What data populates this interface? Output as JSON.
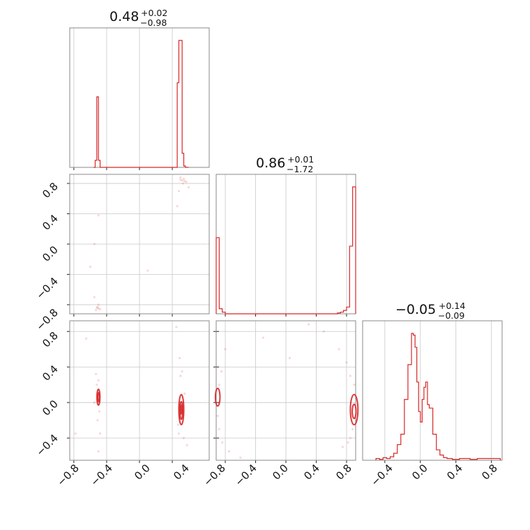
{
  "colors": {
    "series": "#d62728",
    "grid": "#c8c8c8",
    "frame": "#888888"
  },
  "chart_data": {
    "type": "corner",
    "params": [
      {
        "title_value": "0.48",
        "title_plus": "+0.02",
        "title_minus": "−0.98",
        "range": [
          -0.85,
          0.85
        ]
      },
      {
        "title_value": "0.86",
        "title_plus": "+0.01",
        "title_minus": "−1.72",
        "range": [
          -0.92,
          0.92
        ]
      },
      {
        "title_value": "−0.05",
        "title_plus": "+0.14",
        "title_minus": "−0.09",
        "range": [
          -0.65,
          0.92
        ]
      }
    ],
    "xticks": {
      "p0": [
        "−0.8",
        "−0.4",
        "0.0",
        "0.4"
      ],
      "p1": [
        "−0.8",
        "−0.4",
        "0.0",
        "0.4",
        "0.8"
      ],
      "p2": [
        "−0.4",
        "0.0",
        "0.4",
        "0.8"
      ]
    },
    "yticks": {
      "p1": [
        "0.8",
        "0.4",
        "0.0",
        "−0.4",
        "−0.8"
      ],
      "p2": [
        "0.8",
        "0.4",
        "0.0",
        "−0.4"
      ]
    },
    "hist": {
      "p0": {
        "edges": [
          -0.56,
          -0.54,
          -0.52,
          -0.5,
          -0.48,
          -0.46,
          0.46,
          0.48,
          0.5,
          0.52,
          0.54,
          0.56,
          0.6
        ],
        "counts": [
          0,
          0.05,
          0.5,
          0.05,
          0,
          0,
          0.6,
          0.9,
          0.9,
          0.1,
          0.01,
          0
        ]
      },
      "p1": {
        "edges": [
          -0.92,
          -0.88,
          -0.84,
          -0.8,
          0.68,
          0.72,
          0.76,
          0.8,
          0.84,
          0.88,
          0.92
        ],
        "counts": [
          0.45,
          0.03,
          0.01,
          0,
          0.005,
          0.01,
          0.02,
          0.04,
          0.4,
          0.75
        ]
      },
      "p2": {
        "edges": [
          -0.5,
          -0.46,
          -0.42,
          -0.38,
          -0.34,
          -0.3,
          -0.26,
          -0.22,
          -0.18,
          -0.14,
          -0.1,
          -0.08,
          -0.06,
          -0.04,
          -0.02,
          0.0,
          0.02,
          0.04,
          0.06,
          0.08,
          0.1,
          0.14,
          0.18,
          0.22,
          0.26,
          0.3,
          0.36,
          0.44,
          0.56,
          0.64,
          0.84,
          0.9
        ],
        "counts": [
          0.01,
          0.005,
          0.015,
          0.01,
          0.02,
          0.04,
          0.09,
          0.15,
          0.35,
          0.55,
          0.73,
          0.72,
          0.65,
          0.45,
          0.28,
          0.22,
          0.35,
          0.42,
          0.45,
          0.32,
          0.3,
          0.15,
          0.06,
          0.03,
          0.015,
          0.01,
          0.005,
          0.01,
          0.005,
          0.01,
          0.01
        ]
      }
    },
    "contours": {
      "p1_vs_p0": [],
      "p2_vs_p0": [
        {
          "cx": -0.5,
          "cy": 0.06,
          "rx": 0.018,
          "ry": 0.09
        },
        {
          "cx": -0.5,
          "cy": 0.06,
          "rx": 0.01,
          "ry": 0.05
        },
        {
          "cx": 0.51,
          "cy": -0.08,
          "rx": 0.03,
          "ry": 0.17
        },
        {
          "cx": 0.51,
          "cy": -0.09,
          "rx": 0.017,
          "ry": 0.1
        },
        {
          "cx": 0.51,
          "cy": -0.08,
          "rx": 0.008,
          "ry": 0.05
        }
      ],
      "p2_vs_p1": [
        {
          "cx": -0.9,
          "cy": 0.06,
          "rx": 0.03,
          "ry": 0.1
        },
        {
          "cx": 0.9,
          "cy": -0.08,
          "rx": 0.05,
          "ry": 0.17
        },
        {
          "cx": 0.9,
          "cy": -0.1,
          "rx": 0.025,
          "ry": 0.08
        }
      ]
    },
    "scatter": {
      "p1_vs_p0": [
        [
          0.5,
          0.85
        ],
        [
          0.52,
          0.84
        ],
        [
          0.54,
          0.86
        ],
        [
          0.55,
          0.83
        ],
        [
          0.5,
          0.88
        ],
        [
          0.53,
          0.8
        ],
        [
          0.57,
          0.82
        ],
        [
          0.6,
          0.75
        ],
        [
          0.48,
          0.7
        ],
        [
          0.46,
          0.5
        ],
        [
          -0.5,
          -0.85
        ],
        [
          -0.52,
          -0.84
        ],
        [
          -0.48,
          -0.86
        ],
        [
          -0.51,
          -0.83
        ],
        [
          -0.5,
          -0.8
        ],
        [
          -0.53,
          -0.87
        ],
        [
          -0.55,
          -0.7
        ],
        [
          -0.6,
          -0.3
        ],
        [
          -0.5,
          0.38
        ],
        [
          0.1,
          -0.35
        ],
        [
          -0.55,
          0.0
        ]
      ],
      "p2_vs_p0": [
        [
          -0.5,
          0.25
        ],
        [
          -0.52,
          0.2
        ],
        [
          -0.49,
          -0.1
        ],
        [
          -0.51,
          -0.2
        ],
        [
          -0.53,
          0.32
        ],
        [
          -0.48,
          -0.35
        ],
        [
          -0.5,
          -0.55
        ],
        [
          -0.55,
          0.0
        ],
        [
          0.5,
          0.3
        ],
        [
          0.52,
          0.35
        ],
        [
          0.48,
          -0.35
        ],
        [
          0.54,
          -0.4
        ],
        [
          0.49,
          0.5
        ],
        [
          0.45,
          0.85
        ],
        [
          0.58,
          -0.48
        ],
        [
          0.55,
          0.1
        ],
        [
          0.47,
          -0.25
        ],
        [
          -0.65,
          0.72
        ],
        [
          -0.78,
          -0.35
        ]
      ],
      "p2_vs_p1": [
        [
          0.3,
          0.88
        ],
        [
          0.5,
          0.8
        ],
        [
          0.7,
          0.6
        ],
        [
          0.8,
          0.45
        ],
        [
          0.85,
          0.3
        ],
        [
          0.88,
          -0.3
        ],
        [
          0.85,
          -0.4
        ],
        [
          0.82,
          -0.45
        ],
        [
          0.75,
          -0.5
        ],
        [
          0.9,
          0.2
        ],
        [
          -0.85,
          0.35
        ],
        [
          -0.88,
          0.2
        ],
        [
          -0.9,
          -0.15
        ],
        [
          -0.88,
          -0.3
        ],
        [
          -0.84,
          -0.45
        ],
        [
          -0.75,
          -0.55
        ],
        [
          -0.6,
          -0.62
        ],
        [
          -0.8,
          0.6
        ],
        [
          -0.3,
          0.73
        ],
        [
          0.05,
          0.5
        ]
      ]
    }
  }
}
